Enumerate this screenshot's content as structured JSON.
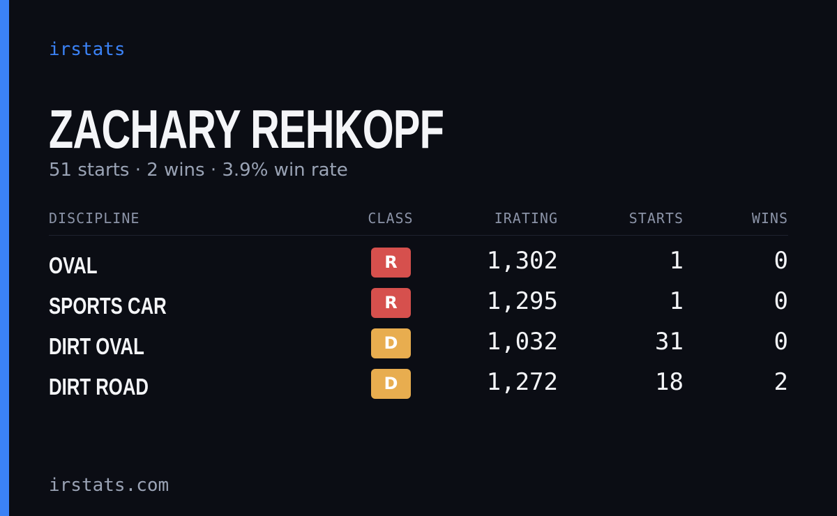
{
  "header": {
    "brand": "irstats",
    "name": "ZACHARY REHKOPF",
    "summary": "51 starts · 2 wins · 3.9% win rate"
  },
  "table": {
    "columns": [
      "DISCIPLINE",
      "CLASS",
      "IRATING",
      "STARTS",
      "WINS"
    ],
    "rows": [
      {
        "discipline": "OVAL",
        "class": "R",
        "class_color": "#d6504d",
        "irating": "1,302",
        "starts": "1",
        "wins": "0"
      },
      {
        "discipline": "SPORTS CAR",
        "class": "R",
        "class_color": "#d6504d",
        "irating": "1,295",
        "starts": "1",
        "wins": "0"
      },
      {
        "discipline": "DIRT OVAL",
        "class": "D",
        "class_color": "#e8ad4f",
        "irating": "1,032",
        "starts": "31",
        "wins": "0"
      },
      {
        "discipline": "DIRT ROAD",
        "class": "D",
        "class_color": "#e8ad4f",
        "irating": "1,272",
        "starts": "18",
        "wins": "2"
      }
    ]
  },
  "footer": {
    "site": "irstats.com"
  }
}
